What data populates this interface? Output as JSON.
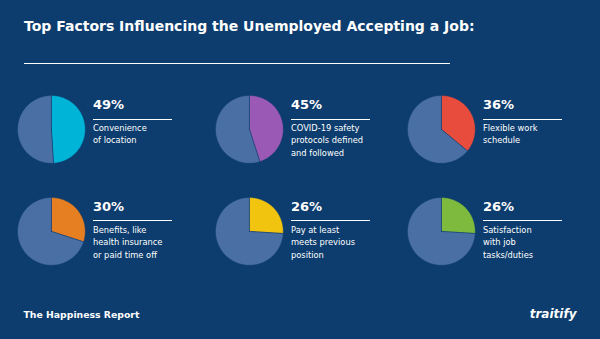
{
  "chart_data": {
    "type": "pie",
    "title": "Top Factors Influencing the Unemployed Accepting a Job:",
    "categories": [
      "Convenience\nof location",
      "COVID-19 safety\nprotocols defined\nand followed",
      "Flexible work\nschedule",
      "Benefits, like\nhealth insurance\nor paid time off",
      "Pay at least\nmeets previous\nposition",
      "Satisfaction\nwith job\ntasks/duties"
    ],
    "values": [
      49,
      45,
      36,
      30,
      26,
      26
    ],
    "value_labels": [
      "49%",
      "45%",
      "36%",
      "30%",
      "26%",
      "26%"
    ],
    "colors": [
      "#00b4d8",
      "#9b59b6",
      "#e74c3c",
      "#e67e22",
      "#f1c40f",
      "#7dba3e"
    ],
    "remainder_values": [
      51,
      55,
      64,
      70,
      74,
      74
    ],
    "remainder_color": "#4a6fa5",
    "annotations": [
      "The Happiness Report",
      "traitify"
    ],
    "background_color": "#0d3d6e",
    "text_color": "#ffffff",
    "divider_color": "#ffffff"
  }
}
